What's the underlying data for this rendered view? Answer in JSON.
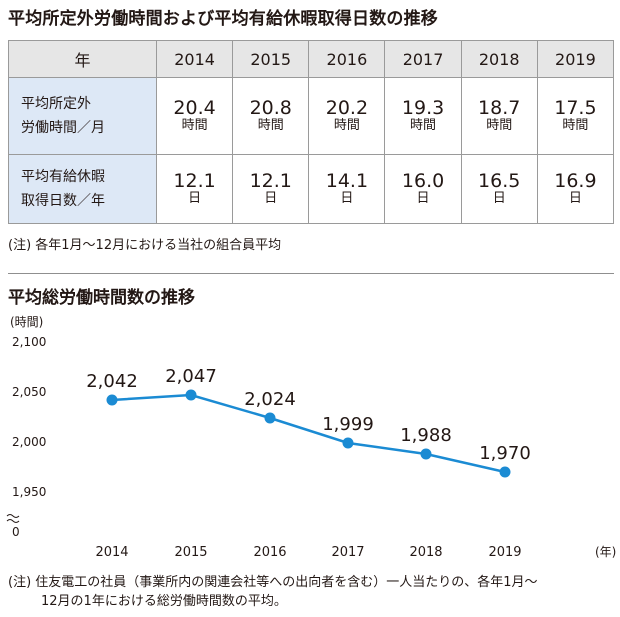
{
  "section1": {
    "title": "平均所定外労働時間および平均有給休暇取得日数の推移",
    "header": {
      "label": "年",
      "years": [
        "2014",
        "2015",
        "2016",
        "2017",
        "2018",
        "2019"
      ]
    },
    "rows": [
      {
        "label_lines": [
          "平均所定外",
          "労働時間／月"
        ],
        "values": [
          "20.4",
          "20.8",
          "20.2",
          "19.3",
          "18.7",
          "17.5"
        ],
        "unit": "時間"
      },
      {
        "label_lines": [
          "平均有給休暇",
          "取得日数／年"
        ],
        "values": [
          "12.1",
          "12.1",
          "14.1",
          "16.0",
          "16.5",
          "16.9"
        ],
        "unit": "日"
      }
    ],
    "note": "(注) 各年1月〜12月における当社の組合員平均"
  },
  "section2": {
    "title": "平均総労働時間数の推移",
    "note_lines": [
      "(注) 住友電工の社員（事業所内の関連会社等への出向者を含む）一人当たりの、各年1月〜",
      "12月の1年における総労働時間数の平均。"
    ]
  },
  "chart_data": {
    "type": "line",
    "title": "平均総労働時間数の推移",
    "ylabel": "(時間)",
    "xlabel": "(年)",
    "x": [
      "2014",
      "2015",
      "2016",
      "2017",
      "2018",
      "2019"
    ],
    "series": [
      {
        "values": [
          2042,
          2047,
          2024,
          1999,
          1988,
          1970
        ]
      }
    ],
    "data_labels": [
      "2,042",
      "2,047",
      "2,024",
      "1,999",
      "1,988",
      "1,970"
    ],
    "ylim": [
      1950,
      2100
    ],
    "y_axis_break": true,
    "yticks": [
      {
        "value": 2100,
        "label": "2,100"
      },
      {
        "value": 2050,
        "label": "2,050"
      },
      {
        "value": 2000,
        "label": "2,000"
      },
      {
        "value": 1950,
        "label": "1,950"
      },
      {
        "value": 0,
        "label": "0"
      }
    ],
    "grid": false,
    "legend": "none",
    "color": "#1b8bd3"
  }
}
